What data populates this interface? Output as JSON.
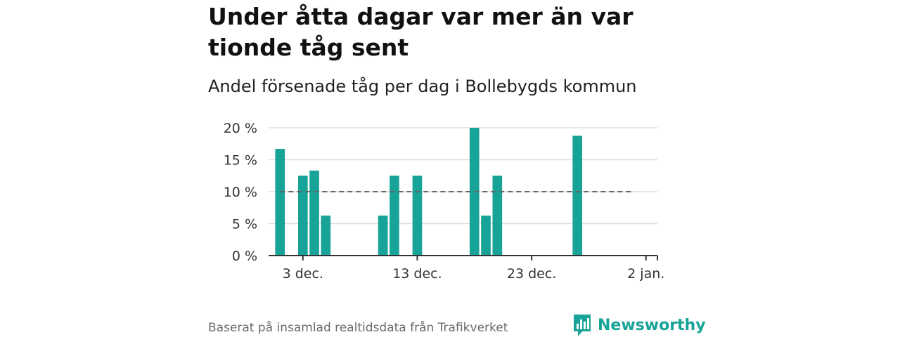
{
  "title": "Under åtta dagar var mer än var tionde tåg sent",
  "subtitle": "Andel försenade tåg per dag i Bollebygds kommun",
  "footer": "Baserat på insamlad realtidsdata från Trafikverket",
  "brand": {
    "name": "Newsworthy",
    "icon": "bar-chart-speech-bubble-icon",
    "color": "#17a398"
  },
  "colors": {
    "bar": "#17a398",
    "reference": "#666666",
    "grid": "#dddddd",
    "axis": "#333333"
  },
  "chart_data": {
    "type": "bar",
    "x_type": "date",
    "x_range": [
      "2023-11-30",
      "2024-01-03"
    ],
    "x_ticks": [
      {
        "date": "2023-12-03",
        "label": "3 dec."
      },
      {
        "date": "2023-12-13",
        "label": "13 dec."
      },
      {
        "date": "2023-12-23",
        "label": "23 dec."
      },
      {
        "date": "2024-01-02",
        "label": "2 jan."
      }
    ],
    "y_ticks": [
      {
        "value": 0,
        "label": "0 %"
      },
      {
        "value": 5,
        "label": "5 %"
      },
      {
        "value": 10,
        "label": "10 %"
      },
      {
        "value": 15,
        "label": "15 %"
      },
      {
        "value": 20,
        "label": "20 %"
      }
    ],
    "ylim": [
      0,
      20
    ],
    "unit": "%",
    "grid": true,
    "bars": [
      {
        "date": "2023-12-01",
        "value": 16.7
      },
      {
        "date": "2023-12-03",
        "value": 12.5
      },
      {
        "date": "2023-12-04",
        "value": 13.3
      },
      {
        "date": "2023-12-05",
        "value": 6.25
      },
      {
        "date": "2023-12-10",
        "value": 6.25
      },
      {
        "date": "2023-12-11",
        "value": 12.5
      },
      {
        "date": "2023-12-13",
        "value": 12.5
      },
      {
        "date": "2023-12-18",
        "value": 20
      },
      {
        "date": "2023-12-19",
        "value": 6.25
      },
      {
        "date": "2023-12-20",
        "value": 12.5
      },
      {
        "date": "2023-12-27",
        "value": 18.75
      }
    ],
    "reference_line": {
      "value": 10,
      "style": "dashed",
      "from": "2023-12-01",
      "to": "2024-01-01"
    }
  }
}
